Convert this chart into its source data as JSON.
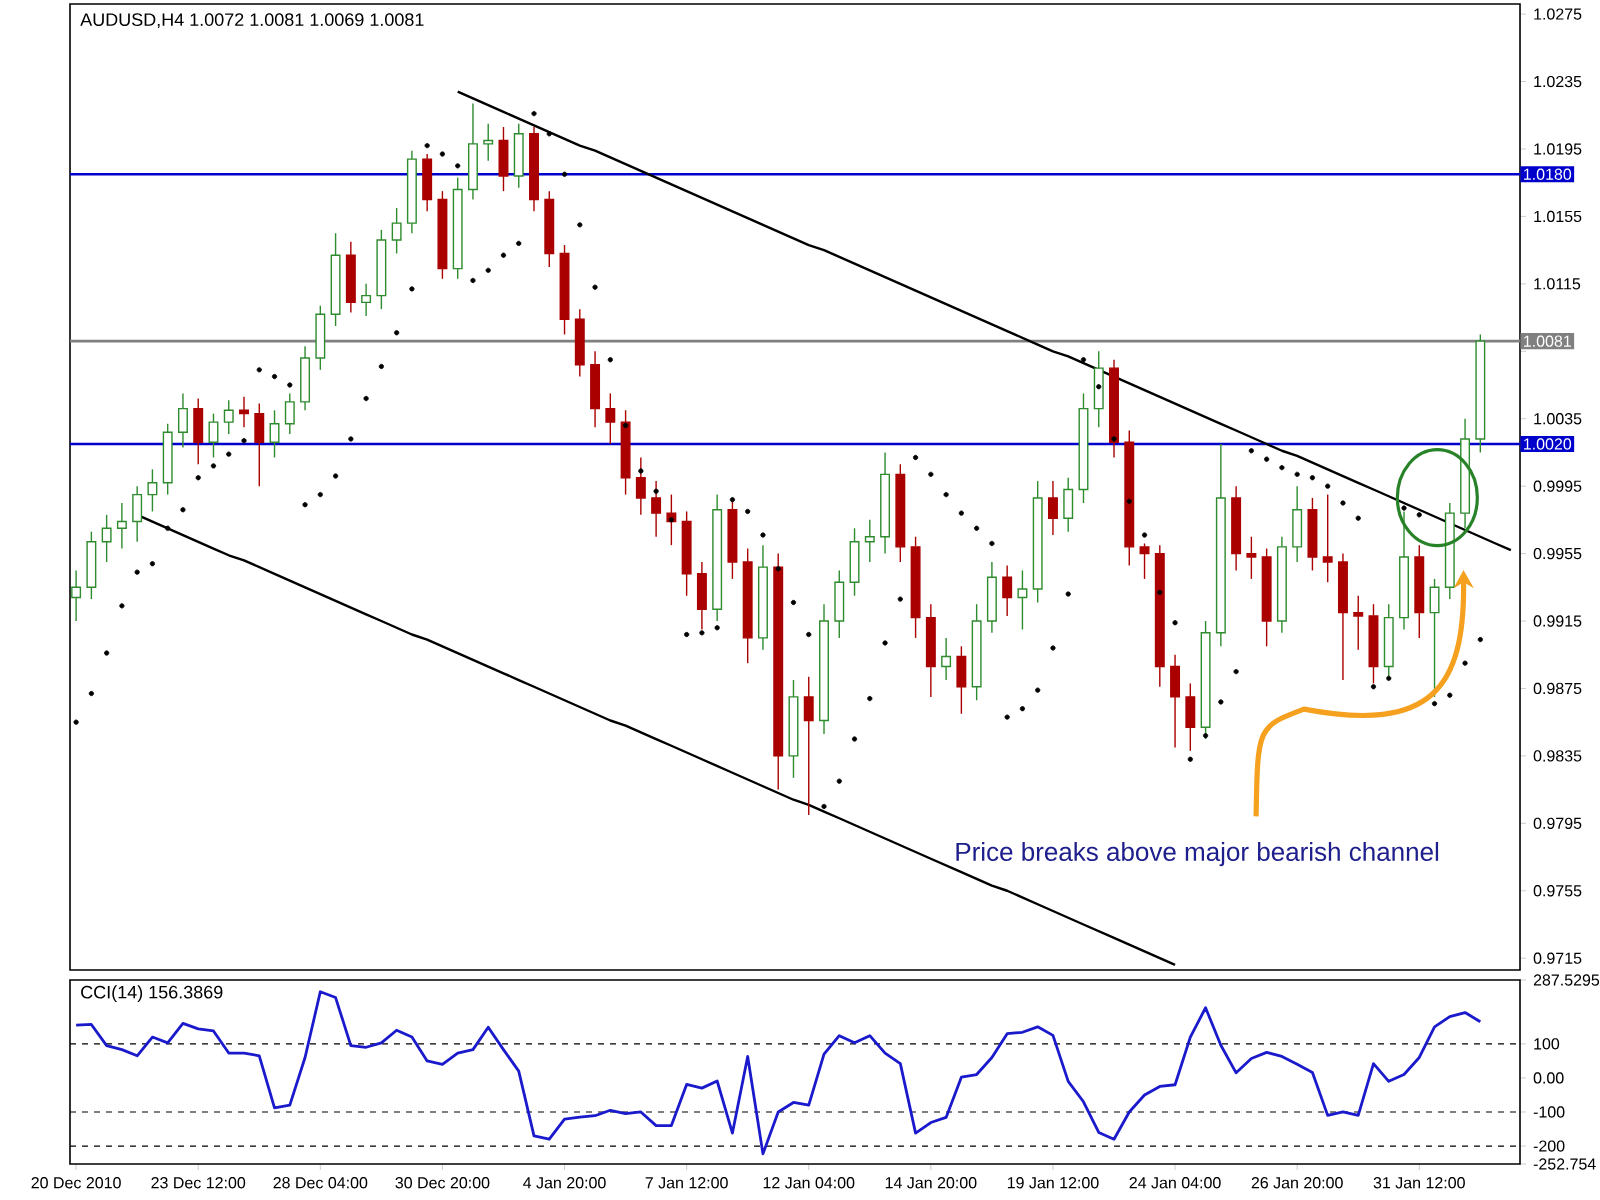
{
  "chart_data": [
    {
      "type": "candlestick",
      "title": "AUDUSD,H4 1.0072 1.0081 1.0069 1.0081",
      "categories": [
        null,
        null,
        null,
        null,
        null,
        null,
        null,
        null,
        null,
        null,
        null,
        null,
        null,
        null,
        null,
        null,
        null,
        null,
        null,
        null,
        null,
        null,
        null,
        null,
        null,
        null,
        null,
        null,
        null,
        null,
        null,
        null,
        null,
        null,
        null,
        null,
        null,
        null,
        null,
        null,
        null,
        null,
        null,
        null,
        null,
        null,
        null,
        null,
        null,
        null,
        null,
        null,
        null,
        null,
        null,
        null,
        null,
        null,
        null,
        null,
        null,
        null,
        null,
        null,
        null,
        null,
        null,
        null,
        null,
        null,
        null,
        null,
        null,
        null,
        null,
        null,
        null,
        null,
        null,
        null,
        null,
        null,
        null,
        null,
        null,
        null,
        null,
        null,
        null,
        null,
        null,
        null,
        null,
        null,
        null
      ],
      "ohlc": [
        [
          0.9929,
          0.9945,
          0.9915,
          0.9935
        ],
        [
          0.9935,
          0.9968,
          0.9928,
          0.9962
        ],
        [
          0.9962,
          0.9978,
          0.995,
          0.997
        ],
        [
          0.997,
          0.9985,
          0.9958,
          0.9974
        ],
        [
          0.9974,
          0.9995,
          0.9962,
          0.999
        ],
        [
          0.999,
          1.0005,
          0.998,
          0.9997
        ],
        [
          0.9997,
          1.0032,
          0.999,
          1.0027
        ],
        [
          1.0027,
          1.005,
          1.0018,
          1.0041
        ],
        [
          1.0041,
          1.0047,
          1.0008,
          1.0021
        ],
        [
          1.0021,
          1.0038,
          1.0012,
          1.0033
        ],
        [
          1.0033,
          1.0046,
          1.0026,
          1.004
        ],
        [
          1.004,
          1.0048,
          1.003,
          1.0038
        ],
        [
          1.0038,
          1.0044,
          0.9995,
          1.0021
        ],
        [
          1.0021,
          1.004,
          1.0012,
          1.0032
        ],
        [
          1.0032,
          1.005,
          1.0026,
          1.0045
        ],
        [
          1.0045,
          1.0078,
          1.004,
          1.0071
        ],
        [
          1.0071,
          1.0102,
          1.0064,
          1.0097
        ],
        [
          1.0097,
          1.0145,
          1.009,
          1.0132
        ],
        [
          1.0132,
          1.014,
          1.0098,
          1.0104
        ],
        [
          1.0104,
          1.0115,
          1.0096,
          1.0108
        ],
        [
          1.0108,
          1.0147,
          1.01,
          1.0141
        ],
        [
          1.0141,
          1.016,
          1.0133,
          1.0151
        ],
        [
          1.0151,
          1.0194,
          1.0145,
          1.0189
        ],
        [
          1.0189,
          1.0192,
          1.0158,
          1.0165
        ],
        [
          1.0165,
          1.017,
          1.0118,
          1.0124
        ],
        [
          1.0124,
          1.0178,
          1.0118,
          1.0171
        ],
        [
          1.0171,
          1.0222,
          1.0165,
          1.0198
        ],
        [
          1.0198,
          1.021,
          1.0188,
          1.02
        ],
        [
          1.02,
          1.0208,
          1.017,
          1.0179
        ],
        [
          1.0179,
          1.021,
          1.0172,
          1.0204
        ],
        [
          1.0204,
          1.0208,
          1.0158,
          1.0165
        ],
        [
          1.0165,
          1.017,
          1.0125,
          1.0133
        ],
        [
          1.0133,
          1.0138,
          1.0085,
          1.0094
        ],
        [
          1.0094,
          1.01,
          1.006,
          1.0067
        ],
        [
          1.0067,
          1.0075,
          1.003,
          1.0041
        ],
        [
          1.0041,
          1.005,
          1.002,
          1.0033
        ],
        [
          1.0033,
          1.004,
          0.999,
          1.0
        ],
        [
          1.0,
          1.0012,
          0.9978,
          0.9988
        ],
        [
          0.9988,
          0.9998,
          0.9965,
          0.9979
        ],
        [
          0.9979,
          0.999,
          0.996,
          0.9974
        ],
        [
          0.9974,
          0.998,
          0.993,
          0.9943
        ],
        [
          0.9943,
          0.995,
          0.991,
          0.9922
        ],
        [
          0.9922,
          0.999,
          0.9915,
          0.9981
        ],
        [
          0.9981,
          0.9986,
          0.994,
          0.995
        ],
        [
          0.995,
          0.9958,
          0.989,
          0.9905
        ],
        [
          0.9905,
          0.996,
          0.9898,
          0.9947
        ],
        [
          0.9947,
          0.9955,
          0.9815,
          0.9835
        ],
        [
          0.9835,
          0.988,
          0.9822,
          0.987
        ],
        [
          0.987,
          0.9882,
          0.98,
          0.9856
        ],
        [
          0.9856,
          0.9925,
          0.9848,
          0.9915
        ],
        [
          0.9915,
          0.9945,
          0.9905,
          0.9938
        ],
        [
          0.9938,
          0.997,
          0.993,
          0.9962
        ],
        [
          0.9962,
          0.9975,
          0.995,
          0.9965
        ],
        [
          0.9965,
          1.0015,
          0.9955,
          1.0002
        ],
        [
          1.0002,
          1.0008,
          0.995,
          0.9959
        ],
        [
          0.9959,
          0.9965,
          0.9905,
          0.9917
        ],
        [
          0.9917,
          0.9925,
          0.987,
          0.9888
        ],
        [
          0.9888,
          0.9905,
          0.988,
          0.9894
        ],
        [
          0.9894,
          0.99,
          0.986,
          0.9876
        ],
        [
          0.9876,
          0.9925,
          0.9868,
          0.9915
        ],
        [
          0.9915,
          0.995,
          0.9908,
          0.9941
        ],
        [
          0.9941,
          0.9948,
          0.9918,
          0.9929
        ],
        [
          0.9929,
          0.9945,
          0.991,
          0.9934
        ],
        [
          0.9934,
          0.9998,
          0.9926,
          0.9988
        ],
        [
          0.9988,
          0.9998,
          0.9966,
          0.9976
        ],
        [
          0.9976,
          1.0,
          0.9968,
          0.9993
        ],
        [
          0.9993,
          1.005,
          0.9985,
          1.0041
        ],
        [
          1.0041,
          1.0075,
          1.003,
          1.0065
        ],
        [
          1.0065,
          1.007,
          1.0012,
          1.0021
        ],
        [
          1.0021,
          1.0028,
          0.9948,
          0.9959
        ],
        [
          0.9959,
          0.9961,
          0.994,
          0.9955
        ],
        [
          0.9955,
          0.996,
          0.9876,
          0.9888
        ],
        [
          0.9888,
          0.9895,
          0.984,
          0.987
        ],
        [
          0.987,
          0.9878,
          0.9838,
          0.9852
        ],
        [
          0.9852,
          0.9915,
          0.9845,
          0.9908
        ],
        [
          0.9908,
          1.002,
          0.99,
          0.9988
        ],
        [
          0.9988,
          0.9995,
          0.9945,
          0.9955
        ],
        [
          0.9955,
          0.9965,
          0.994,
          0.9953
        ],
        [
          0.9953,
          0.9958,
          0.99,
          0.9915
        ],
        [
          0.9915,
          0.9965,
          0.9908,
          0.9959
        ],
        [
          0.9959,
          0.9995,
          0.995,
          0.9981
        ],
        [
          0.9981,
          0.9988,
          0.9945,
          0.9953
        ],
        [
          0.9953,
          0.999,
          0.9938,
          0.995
        ],
        [
          0.995,
          0.9955,
          0.988,
          0.992
        ],
        [
          0.992,
          0.993,
          0.9898,
          0.9918
        ],
        [
          0.9918,
          0.9925,
          0.9878,
          0.9888
        ],
        [
          0.9888,
          0.9925,
          0.9882,
          0.9917
        ],
        [
          0.9917,
          0.998,
          0.991,
          0.9953
        ],
        [
          0.9953,
          0.996,
          0.9905,
          0.992
        ],
        [
          0.992,
          0.994,
          0.987,
          0.9935
        ],
        [
          0.9935,
          0.9985,
          0.9928,
          0.9979
        ],
        [
          0.9979,
          1.0035,
          0.997,
          1.0023
        ],
        [
          1.0023,
          1.0085,
          1.0015,
          1.0081
        ],
        null,
        null
      ],
      "series": [
        {
          "type": "line",
          "color": "#000000",
          "values": [
            null,
            null,
            null,
            null,
            null,
            null,
            null,
            null,
            null,
            null,
            null,
            null,
            null,
            null,
            null,
            null,
            null,
            null,
            null,
            null,
            null,
            null,
            null,
            null,
            null,
            1.0229,
            1.0225,
            1.0221,
            1.0217,
            1.0213,
            1.0209,
            1.0205,
            1.0201,
            1.0197,
            1.0194,
            1.019,
            1.0186,
            1.0182,
            1.0178,
            1.0174,
            1.017,
            1.0166,
            1.0162,
            1.0158,
            1.0154,
            1.015,
            1.0146,
            1.0142,
            1.0138,
            1.0135,
            1.0131,
            1.0127,
            1.0123,
            1.0119,
            1.0115,
            1.0111,
            1.0107,
            1.0103,
            1.0099,
            1.0095,
            1.0091,
            1.0087,
            1.0083,
            1.0079,
            1.0075,
            1.0072,
            1.0068,
            1.0064,
            1.006,
            1.0056,
            1.0052,
            1.0048,
            1.0044,
            1.004,
            1.0036,
            1.0032,
            1.0028,
            1.0024,
            1.002,
            1.0016,
            1.0013,
            1.0009,
            1.0005,
            1.0001,
            0.9997,
            0.9993,
            0.9989,
            0.9985,
            0.9981,
            0.9977,
            0.9973,
            0.9969,
            0.9965,
            0.9961,
            0.9957
          ]
        },
        {
          "type": "line",
          "color": "#000000",
          "values": [
            null,
            null,
            null,
            null,
            0.9978,
            0.9974,
            0.997,
            0.9966,
            0.9962,
            0.9958,
            0.9954,
            0.9951,
            0.9947,
            0.9943,
            0.9939,
            0.9935,
            0.9931,
            0.9927,
            0.9923,
            0.9919,
            0.9915,
            0.9911,
            0.9907,
            0.9904,
            0.99,
            0.9896,
            0.9892,
            0.9888,
            0.9884,
            0.988,
            0.9876,
            0.9872,
            0.9868,
            0.9864,
            0.986,
            0.9856,
            0.9853,
            0.9849,
            0.9845,
            0.9841,
            0.9837,
            0.9833,
            0.9829,
            0.9825,
            0.9821,
            0.9817,
            0.9813,
            0.9809,
            0.9806,
            0.9802,
            0.9798,
            0.9794,
            0.979,
            0.9786,
            0.9782,
            0.9778,
            0.9774,
            0.977,
            0.9766,
            0.9762,
            0.9758,
            0.9755,
            0.9751,
            0.9747,
            0.9743,
            0.9739,
            0.9735,
            0.9731,
            0.9727,
            0.9723,
            0.9719,
            0.9715,
            0.9711,
            null,
            null,
            null,
            null,
            null,
            null,
            null,
            null,
            null,
            null,
            null,
            null,
            null,
            null,
            null,
            null,
            null,
            null,
            null,
            null,
            null,
            null
          ]
        },
        {
          "type": "scatter",
          "marker": "circle",
          "color": "#000000",
          "values": [
            0.9855,
            0.9872,
            0.9896,
            0.9924,
            0.9944,
            0.9949,
            0.997,
            0.9981,
            1.0,
            1.0007,
            1.0014,
            1.0022,
            1.0064,
            1.006,
            1.0055,
            0.9984,
            0.999,
            1.0001,
            1.0023,
            1.0047,
            1.0066,
            1.0086,
            1.0112,
            1.0197,
            1.0192,
            1.0185,
            1.0117,
            1.0123,
            1.0132,
            1.0139,
            1.0216,
            1.0204,
            1.018,
            1.015,
            1.0113,
            1.007,
            1.0031,
            1.0004,
            0.9992,
            0.9975,
            0.9907,
            0.9908,
            0.9911,
            0.9987,
            0.998,
            0.9966,
            0.9946,
            0.9926,
            0.9907,
            0.9805,
            0.982,
            0.9845,
            0.9869,
            0.9902,
            0.9928,
            1.0012,
            1.0002,
            0.999,
            0.9979,
            0.997,
            0.9961,
            0.9858,
            0.9863,
            0.9874,
            0.9899,
            0.9931,
            1.007,
            1.0054,
            1.0023,
            0.9986,
            0.9966,
            0.9932,
            0.9914,
            0.9833,
            0.9847,
            0.9867,
            0.9885,
            1.0016,
            1.0011,
            1.0006,
            1.0002,
            1.0,
            0.9995,
            0.9985,
            0.9976,
            0.9876,
            0.9881,
            0.9982,
            0.9978,
            0.9866,
            0.9871,
            0.989,
            0.9904,
            null,
            null
          ]
        }
      ],
      "ref_lines": [
        {
          "axis": "y",
          "value": 1.018,
          "label": "1.0180",
          "color": "#0000cc"
        },
        {
          "axis": "y",
          "value": 1.002,
          "label": "1.0020",
          "color": "#0000cc"
        },
        {
          "axis": "y",
          "value": 1.0081,
          "label": "1.0081",
          "color": "#808080"
        }
      ],
      "annotations": [
        "Price breaks above major bearish channel"
      ],
      "ylim": [
        0.9708,
        1.0281
      ],
      "yticks": [
        1.0275,
        1.0235,
        1.0195,
        1.0155,
        1.0115,
        {
          "value": 1.0075,
          "label": null
        },
        1.0035,
        0.9995,
        0.9955,
        0.9915,
        0.9875,
        0.9835,
        0.9795,
        0.9755,
        0.9715
      ],
      "tick_labels": "y"
    },
    {
      "type": "line",
      "title": "CCI(14) 156.3869",
      "color": "#1a1acc",
      "categories": [
        "20 Dec 2010",
        null,
        null,
        null,
        null,
        null,
        null,
        null,
        "23 Dec 12:00",
        null,
        null,
        null,
        null,
        null,
        null,
        null,
        "28 Dec 04:00",
        null,
        null,
        null,
        null,
        null,
        null,
        null,
        "30 Dec 20:00",
        null,
        null,
        null,
        null,
        null,
        null,
        null,
        "4 Jan 20:00",
        null,
        null,
        null,
        null,
        null,
        null,
        null,
        "7 Jan 12:00",
        null,
        null,
        null,
        null,
        null,
        null,
        null,
        "12 Jan 04:00",
        null,
        null,
        null,
        null,
        null,
        null,
        null,
        "14 Jan 20:00",
        null,
        null,
        null,
        null,
        null,
        null,
        null,
        "19 Jan 12:00",
        null,
        null,
        null,
        null,
        null,
        null,
        null,
        "24 Jan 04:00",
        null,
        null,
        null,
        null,
        null,
        null,
        null,
        "26 Jan 20:00",
        null,
        null,
        null,
        null,
        null,
        null,
        null,
        "31 Jan 12:00",
        null,
        null,
        null,
        null,
        null,
        null
      ],
      "values": [
        155,
        157,
        95,
        83,
        65,
        120,
        103,
        160,
        144,
        138,
        73,
        73,
        65,
        -88,
        -80,
        60,
        253,
        236,
        95,
        90,
        103,
        140,
        120,
        50,
        40,
        73,
        83,
        149,
        83,
        20,
        -170,
        -180,
        -121,
        -115,
        -111,
        -95,
        -105,
        -100,
        -140,
        -140,
        -19,
        -30,
        -9,
        -162,
        63,
        -223,
        -100,
        -72,
        -80,
        70,
        124,
        103,
        124,
        73,
        42,
        -162,
        -131,
        -116,
        2,
        10,
        60,
        130,
        134,
        150,
        125,
        -10,
        -70,
        -160,
        -180,
        -100,
        -50,
        -25,
        -20,
        120,
        206,
        96,
        15,
        57,
        75,
        63,
        40,
        16,
        -110,
        -100,
        -110,
        42,
        -10,
        10,
        60,
        150,
        180,
        192,
        165,
        null,
        null
      ],
      "ref_lines": [
        {
          "axis": "y",
          "value": 100,
          "color": "#000000",
          "line_style": "dashed"
        },
        {
          "axis": "y",
          "value": -100,
          "color": "#000000",
          "line_style": "dashed"
        },
        {
          "axis": "y",
          "value": -200,
          "color": "#000000",
          "line_style": "dashed"
        }
      ],
      "ylim": [
        -252.754,
        287.5295
      ],
      "yticks": [
        287.5295,
        100,
        {
          "value": 0,
          "label": "0.00"
        },
        -100,
        -200,
        -252.754
      ]
    }
  ]
}
